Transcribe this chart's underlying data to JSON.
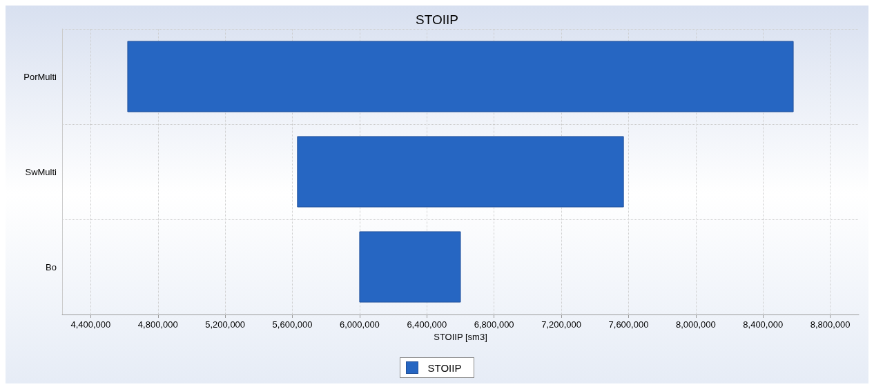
{
  "chart_data": {
    "type": "bar",
    "orientation": "horizontal",
    "title": "STOIIP",
    "xlabel": "STOIIP [sm3]",
    "categories": [
      "PorMulti",
      "SwMulti",
      "Bo"
    ],
    "series": [
      {
        "name": "STOIIP",
        "color": "#2666c2",
        "values": [
          3960000,
          1940000,
          600000
        ],
        "base": [
          4620000,
          5630000,
          6000000
        ]
      }
    ],
    "xlim": [
      4230000,
      8970000
    ],
    "xticks": [
      {
        "value": 4400000,
        "label": "4,400,000"
      },
      {
        "value": 4800000,
        "label": "4,800,000"
      },
      {
        "value": 5200000,
        "label": "5,200,000"
      },
      {
        "value": 5600000,
        "label": "5,600,000"
      },
      {
        "value": 6000000,
        "label": "6,000,000"
      },
      {
        "value": 6400000,
        "label": "6,400,000"
      },
      {
        "value": 6800000,
        "label": "6,800,000"
      },
      {
        "value": 7200000,
        "label": "7,200,000"
      },
      {
        "value": 7600000,
        "label": "7,600,000"
      },
      {
        "value": 8000000,
        "label": "8,000,000"
      },
      {
        "value": 8400000,
        "label": "8,400,000"
      },
      {
        "value": 8800000,
        "label": "8,800,000"
      }
    ],
    "grid": true,
    "legend": "bottom"
  }
}
